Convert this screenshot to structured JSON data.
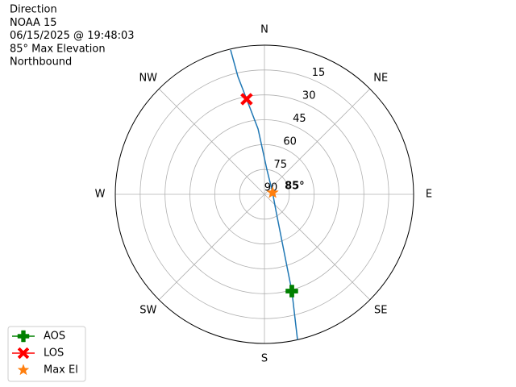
{
  "chart_data": {
    "type": "polar",
    "title_lines": [
      "Direction",
      "NOAA 15",
      "06/15/2025 @ 19:48:03",
      "85° Max Elevation",
      "Northbound"
    ],
    "rlim": [
      90,
      0
    ],
    "rticks": [
      90,
      75,
      60,
      45,
      30,
      15
    ],
    "thetaticks": [
      {
        "value": 0,
        "label": "N"
      },
      {
        "value": 45,
        "label": "NE"
      },
      {
        "value": 90,
        "label": "E"
      },
      {
        "value": 135,
        "label": "SE"
      },
      {
        "value": 180,
        "label": "S"
      },
      {
        "value": 225,
        "label": "SW"
      },
      {
        "value": 270,
        "label": "W"
      },
      {
        "value": 315,
        "label": "NW"
      }
    ],
    "grid": true,
    "legend": "lower left",
    "series": [
      {
        "color": "#1f77b4",
        "marker": "none",
        "x": [
          167.2,
          164.2,
          159.6,
          143.6,
          79,
          5.5,
          354.4,
          349.4,
          347.3,
          346.8
        ],
        "values": [
          0,
          29.3,
          59.4,
          78.5,
          85,
          74.9,
          50.4,
          31.6,
          17.2,
          0.5
        ]
      },
      {
        "name": "AOS",
        "color": "#008000",
        "marker": "plus",
        "x": [
          164.2
        ],
        "values": [
          29.3
        ]
      },
      {
        "name": "LOS",
        "color": "#ff0000",
        "marker": "x",
        "x": [
          349.4
        ],
        "values": [
          31.6
        ]
      },
      {
        "name": "Max El",
        "color": "#ff7f0e",
        "marker": "star",
        "x": [
          79
        ],
        "values": [
          85
        ],
        "value_labels": [
          "85°"
        ]
      }
    ]
  }
}
